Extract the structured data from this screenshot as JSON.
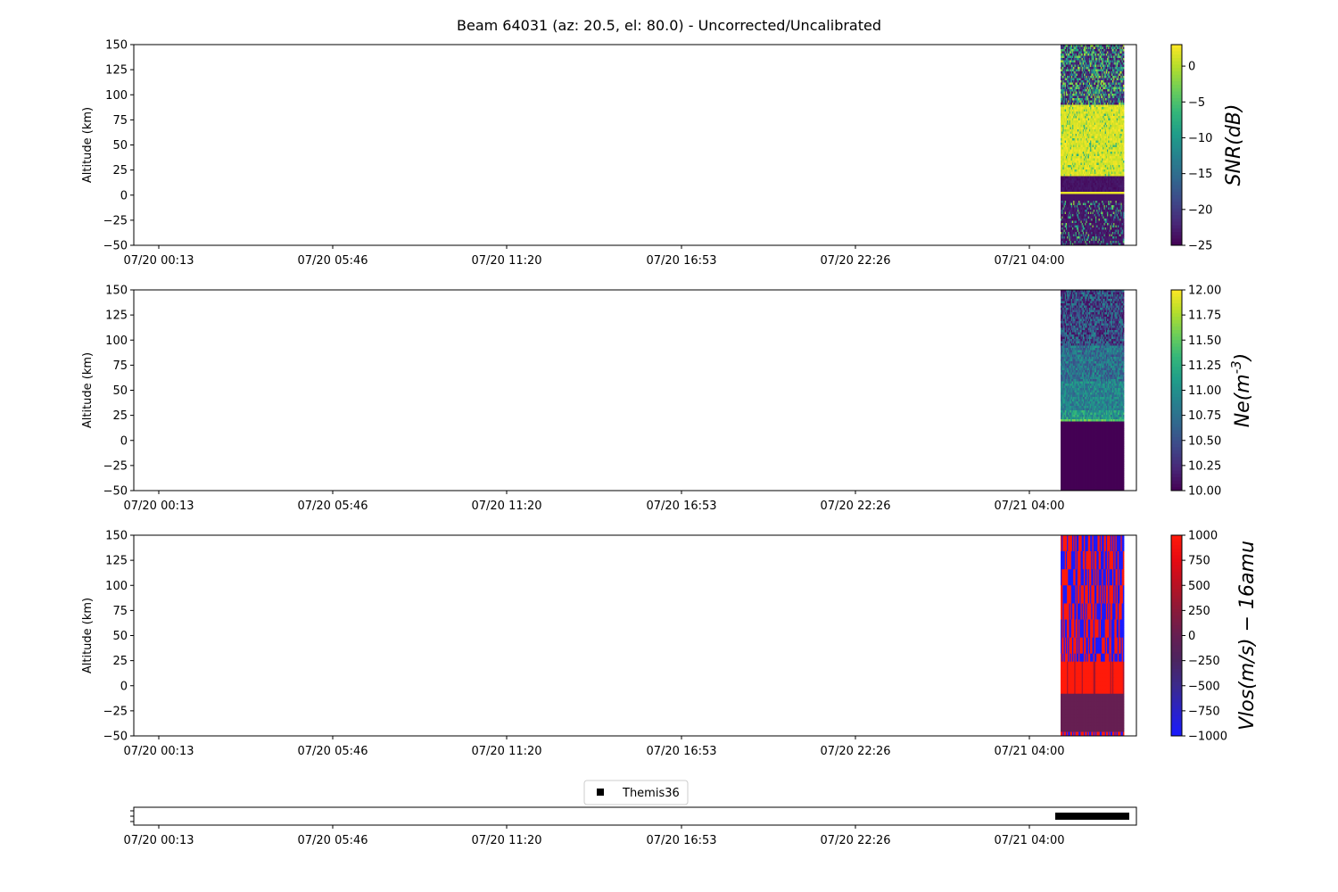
{
  "title": "Beam 64031 (az: 20.5, el: 80.0) - Uncorrected/Uncalibrated",
  "colors": {
    "viridis": [
      "#440154",
      "#482878",
      "#3e4989",
      "#31688e",
      "#26828e",
      "#1f9e89",
      "#35b779",
      "#6ece58",
      "#b5de2b",
      "#fde725"
    ],
    "bwr": [
      "#1a1aff",
      "#2a22c8",
      "#3b2a8c",
      "#4b2560",
      "#661f52",
      "#8a1a3a",
      "#b81224",
      "#e60a12",
      "#ff1a0a"
    ],
    "axis": "#000000",
    "background": "#ffffff",
    "marker": "#000000"
  },
  "chart_data": [
    {
      "type": "heatmap",
      "ylabel": "Altitude (km)",
      "ylim": [
        -50,
        150
      ],
      "yticks": [
        "150",
        "125",
        "100",
        "75",
        "50",
        "25",
        "0",
        "−25",
        "−50"
      ],
      "xtick_labels": [
        "07/20 00:13",
        "07/20 05:46",
        "07/20 11:20",
        "07/20 16:53",
        "07/20 22:26",
        "07/21 04:00"
      ],
      "data_time_range": [
        "07/21 05:00",
        "07/21 07:00"
      ],
      "colormap": "viridis",
      "colorbar": {
        "label": "SNR(dB)",
        "range": [
          -25,
          3
        ],
        "ticks": [
          "0",
          "−5",
          "−10",
          "−15",
          "−20",
          "−25"
        ]
      },
      "altitude_bands": [
        {
          "from": 90,
          "to": 150,
          "level": "noisy, mostly low to mid"
        },
        {
          "from": 20,
          "to": 90,
          "level": "high (~0 to 3)"
        },
        {
          "from": 3,
          "to": 18,
          "level": "low (~-25)"
        },
        {
          "from": -5,
          "to": 3,
          "level": "high"
        },
        {
          "from": -50,
          "to": -5,
          "level": "noisy, mostly low"
        }
      ]
    },
    {
      "type": "heatmap",
      "ylabel": "Altitude (km)",
      "ylim": [
        -50,
        150
      ],
      "yticks": [
        "150",
        "125",
        "100",
        "75",
        "50",
        "25",
        "0",
        "−25",
        "−50"
      ],
      "xtick_labels": [
        "07/20 00:13",
        "07/20 05:46",
        "07/20 11:20",
        "07/20 16:53",
        "07/20 22:26",
        "07/21 04:00"
      ],
      "data_time_range": [
        "07/21 05:00",
        "07/21 07:00"
      ],
      "colormap": "viridis",
      "colorbar": {
        "label": "Ne(m^-3)",
        "range": [
          10,
          12
        ],
        "ticks": [
          "12.00",
          "11.75",
          "11.50",
          "11.25",
          "11.00",
          "10.75",
          "10.50",
          "10.25",
          "10.00"
        ]
      },
      "altitude_bands": [
        {
          "from": 95,
          "to": 150,
          "level": "noisy, ~10.0-10.9"
        },
        {
          "from": 22,
          "to": 95,
          "level": "~10.5-11.1"
        },
        {
          "from": 20,
          "to": 22,
          "level": "~11.3"
        },
        {
          "from": -50,
          "to": 20,
          "level": "10.0"
        }
      ]
    },
    {
      "type": "heatmap",
      "ylabel": "Altitude (km)",
      "ylim": [
        -50,
        150
      ],
      "yticks": [
        "150",
        "125",
        "100",
        "75",
        "50",
        "25",
        "0",
        "−25",
        "−50"
      ],
      "xtick_labels": [
        "07/20 00:13",
        "07/20 05:46",
        "07/20 11:20",
        "07/20 16:53",
        "07/20 22:26",
        "07/21 04:00"
      ],
      "data_time_range": [
        "07/21 05:00",
        "07/21 07:00"
      ],
      "colormap": "bwr",
      "colorbar": {
        "label": "Vlos(m/s) − 16amu",
        "range": [
          -1000,
          1000
        ],
        "ticks": [
          "1000",
          "750",
          "500",
          "250",
          "0",
          "−250",
          "−500",
          "−750",
          "−1000"
        ]
      },
      "altitude_bands": [
        {
          "from": 25,
          "to": 150,
          "level": "alternating ±1000"
        },
        {
          "from": -8,
          "to": 25,
          "level": "mostly +1000"
        },
        {
          "from": -45,
          "to": -8,
          "level": "~0"
        },
        {
          "from": -50,
          "to": -45,
          "level": "alternating ±1000"
        }
      ]
    },
    {
      "type": "scatter",
      "legend": "Themis36",
      "legend_position": "top-center",
      "xtick_labels": [
        "07/20 00:13",
        "07/20 05:46",
        "07/20 11:20",
        "07/20 16:53",
        "07/20 22:26",
        "07/21 04:00"
      ],
      "data_time_range": [
        "07/21 05:00",
        "07/21 07:00"
      ]
    }
  ]
}
